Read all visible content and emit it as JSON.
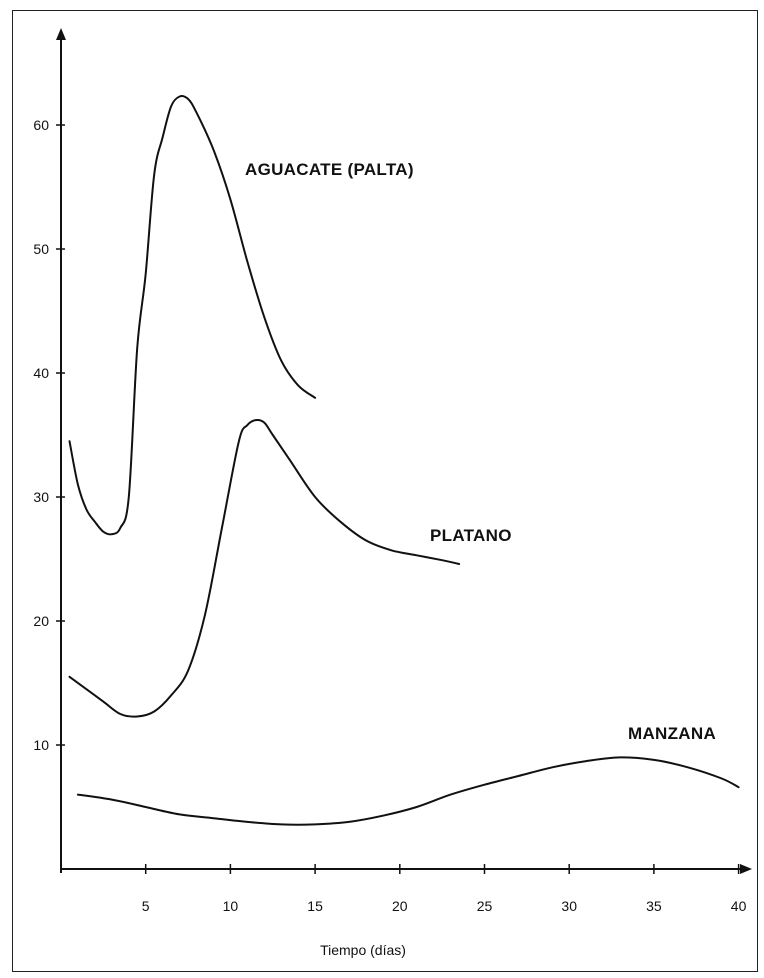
{
  "chart_data": {
    "type": "line",
    "title": "",
    "xlabel": "Tiempo (días)",
    "ylabel": "",
    "xlim": [
      0,
      40
    ],
    "ylim": [
      0,
      65
    ],
    "x_ticks": [
      5,
      10,
      15,
      20,
      25,
      30,
      35,
      40
    ],
    "y_ticks": [
      10,
      20,
      30,
      40,
      50,
      60
    ],
    "grid": false,
    "legend": "none (series labeled directly on chart)",
    "series": [
      {
        "name": "AGUACATE (PALTA)",
        "x": [
          0.5,
          1.0,
          1.5,
          2.0,
          2.5,
          3.0,
          3.5,
          4.0,
          4.5,
          5.0,
          5.5,
          6.0,
          6.5,
          7.0,
          7.5,
          8.0,
          9.0,
          10.0,
          11.0,
          12.0,
          13.0,
          14.0,
          15.0
        ],
        "values": [
          34.5,
          31,
          29,
          28,
          27.2,
          27,
          27.5,
          30,
          42,
          48,
          56,
          59,
          61.5,
          62.3,
          62.1,
          61,
          58,
          54,
          49,
          44.5,
          41,
          39,
          38
        ]
      },
      {
        "name": "PLATANO",
        "x": [
          0.5,
          1.5,
          2.5,
          3.5,
          4.5,
          5.5,
          6.5,
          7.5,
          8.5,
          9.5,
          10.5,
          11.0,
          11.5,
          12.0,
          12.5,
          13.5,
          15.0,
          16.5,
          18.0,
          19.5,
          21.0,
          22.5,
          23.5
        ],
        "values": [
          15.5,
          14.5,
          13.5,
          12.5,
          12.3,
          12.7,
          14,
          16,
          20.5,
          27.5,
          34.5,
          35.8,
          36.2,
          36,
          35,
          33,
          30,
          28,
          26.5,
          25.7,
          25.3,
          24.9,
          24.6
        ]
      },
      {
        "name": "MANZANA",
        "x": [
          1,
          3,
          5,
          7,
          9,
          11,
          13,
          15,
          17,
          19,
          21,
          23,
          25,
          27,
          29,
          31,
          33,
          35,
          37,
          39,
          40
        ],
        "values": [
          6.0,
          5.6,
          5.0,
          4.4,
          4.1,
          3.8,
          3.6,
          3.6,
          3.8,
          4.3,
          5.0,
          6.0,
          6.8,
          7.5,
          8.2,
          8.7,
          9.0,
          8.8,
          8.2,
          7.3,
          6.6
        ]
      }
    ]
  }
}
